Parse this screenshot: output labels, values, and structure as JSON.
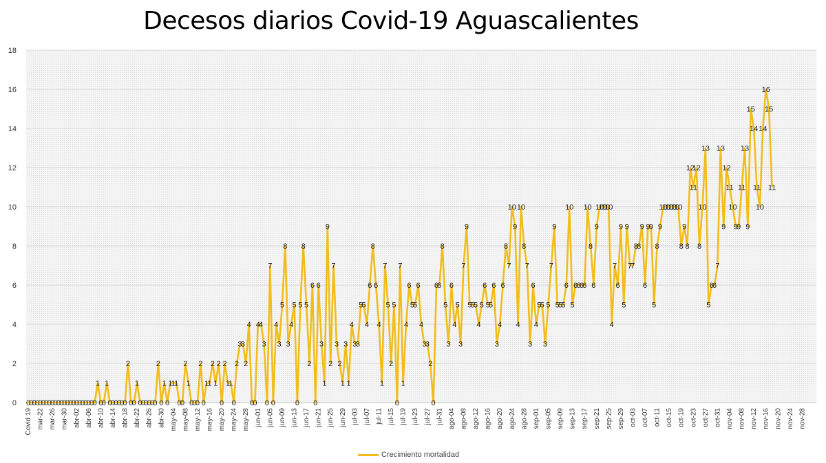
{
  "chart_data": {
    "type": "line",
    "title": "Decesos diarios Covid-19 Aguascalientes",
    "xlabel": "",
    "ylabel": "",
    "ylim": [
      0,
      18
    ],
    "yticks": [
      0,
      2,
      4,
      6,
      8,
      10,
      12,
      14,
      16,
      18
    ],
    "grid": true,
    "legend_position": "bottom",
    "line_color": "#f2bd18",
    "x_tick_labels": [
      "Covid 19",
      "mar-22",
      "mar-26",
      "mar-30",
      "abr-02",
      "abr-06",
      "abr-10",
      "abr-14",
      "abr-18",
      "abr-22",
      "abr-26",
      "abr-30",
      "may-04",
      "may-08",
      "may-12",
      "may-16",
      "may-20",
      "may-24",
      "may-28",
      "jun-01",
      "jun-05",
      "jun-09",
      "jun-13",
      "jun-17",
      "jun-21",
      "jun-25",
      "jun-29",
      "jul-03",
      "jul-07",
      "jul-11",
      "jul-15",
      "jul-19",
      "jul-23",
      "jul-27",
      "jul-31",
      "ago-04",
      "ago-08",
      "ago-12",
      "ago-16",
      "ago-20",
      "ago-24",
      "ago-28",
      "sep-01",
      "sep-05",
      "sep-09",
      "sep-13",
      "sep-17",
      "sep-21",
      "sep-25",
      "sep-29",
      "oct-03",
      "oct-07",
      "oct-11",
      "oct-15",
      "oct-19",
      "oct-23",
      "oct-27",
      "oct-31",
      "nov-04",
      "nov-08",
      "nov-12",
      "nov-16",
      "nov-20",
      "nov-24",
      "nov-28"
    ],
    "series": [
      {
        "name": "Crecimiento mortalidad",
        "values": [
          0,
          0,
          0,
          0,
          0,
          0,
          0,
          0,
          0,
          0,
          0,
          0,
          0,
          0,
          0,
          0,
          0,
          0,
          0,
          0,
          0,
          0,
          0,
          1,
          0,
          0,
          1,
          0,
          0,
          0,
          0,
          0,
          0,
          2,
          0,
          0,
          1,
          0,
          0,
          0,
          0,
          0,
          0,
          2,
          0,
          1,
          0,
          1,
          1,
          1,
          0,
          0,
          2,
          1,
          0,
          0,
          0,
          2,
          0,
          1,
          1,
          2,
          1,
          2,
          0,
          2,
          1,
          1,
          0,
          2,
          3,
          3,
          2,
          4,
          0,
          0,
          4,
          4,
          3,
          0,
          7,
          0,
          4,
          3,
          5,
          8,
          3,
          4,
          5,
          0,
          5,
          8,
          5,
          2,
          6,
          0,
          6,
          3,
          1,
          9,
          2,
          7,
          3,
          2,
          1,
          3,
          1,
          4,
          3,
          3,
          5,
          5,
          4,
          6,
          8,
          6,
          4,
          1,
          7,
          5,
          2,
          5,
          0,
          7,
          1,
          4,
          6,
          5,
          5,
          6,
          4,
          3,
          3,
          2,
          0,
          6,
          6,
          8,
          5,
          3,
          6,
          4,
          5,
          3,
          7,
          9,
          5,
          5,
          5,
          4,
          5,
          6,
          5,
          5,
          6,
          3,
          4,
          6,
          8,
          7,
          10,
          9,
          4,
          10,
          8,
          7,
          3,
          6,
          4,
          5,
          5,
          3,
          5,
          7,
          9,
          5,
          5,
          5,
          6,
          10,
          5,
          6,
          6,
          6,
          6,
          10,
          8,
          6,
          9,
          10,
          10,
          10,
          10,
          4,
          7,
          6,
          9,
          5,
          9,
          7,
          7,
          8,
          8,
          9,
          6,
          9,
          9,
          5,
          8,
          9,
          10,
          10,
          10,
          10,
          10,
          10,
          8,
          9,
          8,
          12,
          11,
          12,
          8,
          10,
          13,
          5,
          6,
          6,
          7,
          13,
          9,
          12,
          11,
          10,
          9,
          9,
          11,
          13,
          9,
          15,
          14,
          11,
          10,
          14,
          16,
          15,
          11
        ]
      }
    ]
  }
}
